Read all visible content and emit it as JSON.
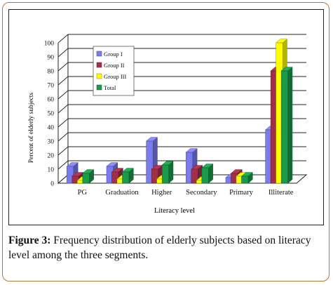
{
  "chart_data": {
    "type": "bar",
    "style": "3d-clustered",
    "categories": [
      "PG",
      "Graduation",
      "Higher",
      "Secondary",
      "Primary",
      "Illiterate"
    ],
    "series": [
      {
        "name": "Group I",
        "color": "#7b7bf0",
        "values": [
          12,
          12,
          30,
          22,
          4,
          38
        ]
      },
      {
        "name": "Group II",
        "color": "#a0304a",
        "values": [
          5,
          8,
          10,
          10,
          7,
          80
        ]
      },
      {
        "name": "Group III",
        "color": "#ffff00",
        "values": [
          2,
          3,
          3,
          2,
          5,
          100
        ]
      },
      {
        "name": "Total",
        "color": "#1a9a4a",
        "values": [
          7,
          8,
          13,
          11,
          5,
          80
        ]
      }
    ],
    "ylim": [
      0,
      100
    ],
    "yticks": [
      0,
      10,
      20,
      30,
      40,
      50,
      60,
      70,
      80,
      90,
      100
    ],
    "xlabel": "Literacy level",
    "ylabel": "Percent of elderly subjects",
    "legend_position": "top-left",
    "grid": true
  },
  "caption": {
    "label": "Figure 3:",
    "text": " Frequency distribution of elderly subjects based on literacy level among the three segments."
  },
  "legend_labels": [
    "Group I",
    "Group II",
    "Group III",
    "Total"
  ]
}
